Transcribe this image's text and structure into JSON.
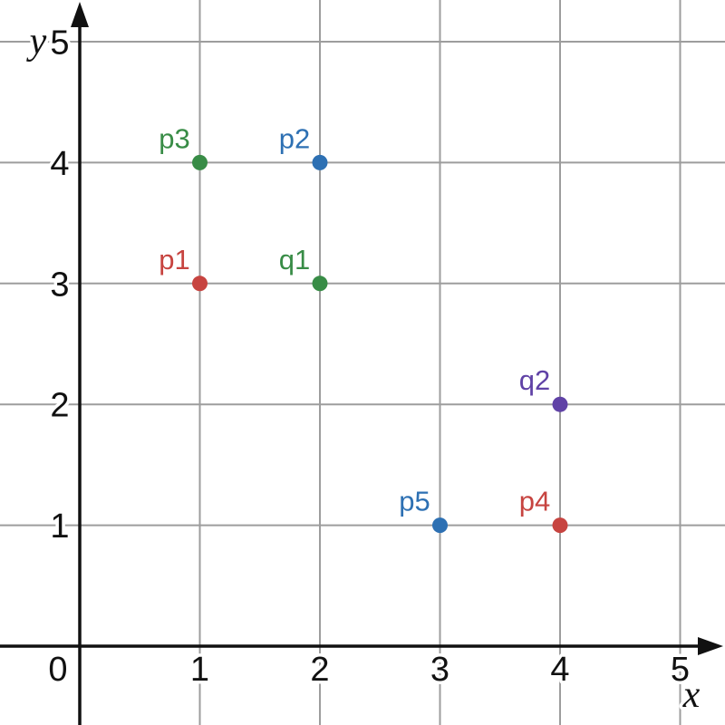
{
  "chart_data": {
    "type": "scatter",
    "title": "",
    "xlabel": "x",
    "ylabel": "y",
    "xlim": [
      0,
      5.37
    ],
    "ylim": [
      0,
      5.33
    ],
    "x_ticks": [
      "1",
      "2",
      "3",
      "4",
      "5"
    ],
    "y_ticks": [
      "1",
      "2",
      "3",
      "4",
      "5"
    ],
    "origin_label": "0",
    "grid": true,
    "legend": false,
    "points": [
      {
        "label": "p1",
        "x": 1,
        "y": 3,
        "color": "#c74440"
      },
      {
        "label": "p2",
        "x": 2,
        "y": 4,
        "color": "#2d70b3"
      },
      {
        "label": "p3",
        "x": 1,
        "y": 4,
        "color": "#388c46"
      },
      {
        "label": "p4",
        "x": 4,
        "y": 1,
        "color": "#c74440"
      },
      {
        "label": "p5",
        "x": 3,
        "y": 1,
        "color": "#2d70b3"
      },
      {
        "label": "q1",
        "x": 2,
        "y": 3,
        "color": "#388c46"
      },
      {
        "label": "q2",
        "x": 4,
        "y": 2,
        "color": "#6042a6"
      }
    ],
    "colors": {
      "red": "#c74440",
      "blue": "#2d70b3",
      "green": "#388c46",
      "purple": "#6042a6",
      "grid_line": "#9d9d9d",
      "axis": "#111111",
      "tick_label": "#111111",
      "background": "#ffffff"
    }
  }
}
